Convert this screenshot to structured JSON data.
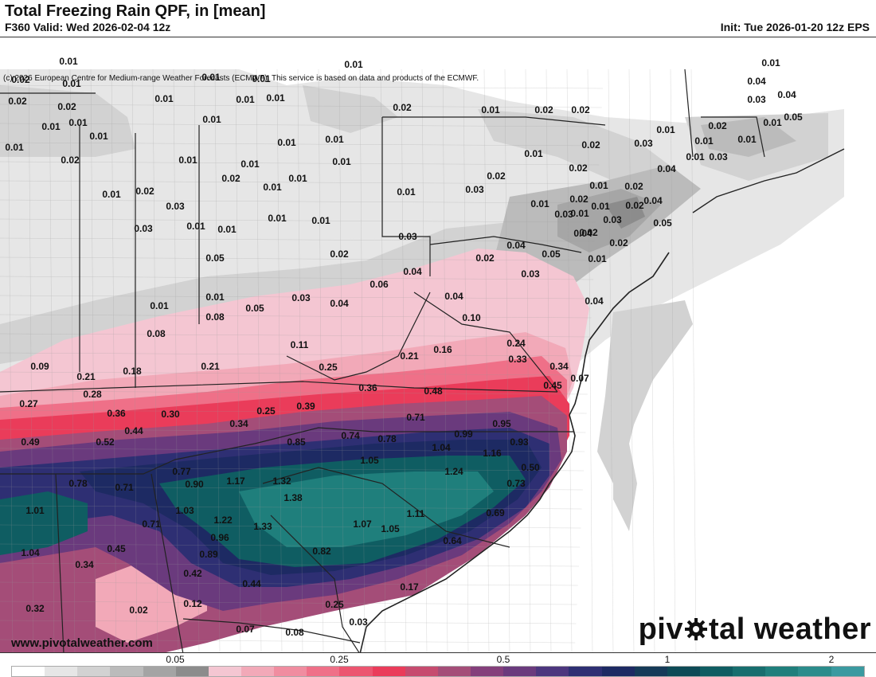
{
  "header": {
    "title": "Total Freezing Rain QPF, in [mean]",
    "valid": "F360 Valid: Wed 2026-02-04 12z",
    "init": "Init: Tue 2026-01-20 12z EPS",
    "copyright": "(c) 2026 European Centre for Medium-range Weather Forecasts (ECMWF). This service is based on data and products of the ECMWF."
  },
  "footer": {
    "website": "www.pivotalweather.com",
    "brand_pre": "piv",
    "brand_post": "tal weather"
  },
  "legend": {
    "ticks": [
      "0.05",
      "0.25",
      "0.5",
      "1",
      "2"
    ],
    "colors": [
      "#ffffff",
      "#e6e6e6",
      "#d2d2d2",
      "#bbbbbb",
      "#a4a4a4",
      "#8c8c8c",
      "#f4c6d2",
      "#f2a9b8",
      "#f08da0",
      "#ef7088",
      "#ec5570",
      "#ea3c5a",
      "#c64b6f",
      "#a44d78",
      "#843f7b",
      "#6a3a7d",
      "#4c367e",
      "#2e2f73",
      "#1d2a63",
      "#153a58",
      "#0d4a56",
      "#0f5d62",
      "#176e6e",
      "#1f7f7c",
      "#2b8c8b",
      "#3a9aa0"
    ]
  },
  "map": {
    "palette": {
      "g1": "#e6e6e6",
      "g2": "#d2d2d2",
      "g3": "#bbbbbb",
      "g4": "#a6a6a6",
      "g5": "#8c8c8c",
      "p1": "#f4c6d2",
      "p2": "#f2a9b8",
      "p3": "#ef7088",
      "r1": "#ea3c5a",
      "m1": "#a44d78",
      "m2": "#6a3a7d",
      "n1": "#2e2f73",
      "n2": "#1d2a63",
      "t1": "#0f5d62",
      "t2": "#1f7f7c"
    },
    "values": [
      "0.01",
      "0.02",
      "0.01",
      "0.02",
      "0.01",
      "0.01",
      "0.01",
      "0.01",
      "0.01",
      "0.01",
      "0.01",
      "0.02",
      "0.01",
      "0.01",
      "0.01",
      "0.02",
      "0.01",
      "0.02",
      "0.03",
      "0.03",
      "0.01",
      "0.01",
      "0.01",
      "0.02",
      "0.01",
      "0.01",
      "0.01",
      "0.01",
      "0.01",
      "0.01",
      "0.01",
      "0.01",
      "0.01",
      "0.02",
      "0.01",
      "0.02",
      "0.02",
      "0.01",
      "0.02",
      "0.02",
      "0.01",
      "0.03",
      "0.02",
      "0.01",
      "0.01",
      "0.03",
      "0.01",
      "0.04",
      "0.03",
      "0.01",
      "0.05",
      "0.04",
      "0.02",
      "0.03",
      "0.01",
      "0.01",
      "0.02",
      "0.01",
      "0.01",
      "0.02",
      "0.04",
      "0.01",
      "0.03",
      "0.03",
      "0.02",
      "0.04",
      "0.01",
      "0.05",
      "0.04",
      "0.01",
      "0.02",
      "0.02",
      "0.04",
      "0.02",
      "0.05",
      "0.04",
      "0.03",
      "0.06",
      "0.04",
      "0.03",
      "0.05",
      "0.01",
      "0.01",
      "0.02",
      "0.03",
      "0.08",
      "0.08",
      "0.05",
      "0.11",
      "0.10",
      "0.04",
      "0.04",
      "0.24",
      "0.16",
      "0.21",
      "0.25",
      "0.21",
      "0.18",
      "0.09",
      "0.33",
      "0.34",
      "0.07",
      "0.45",
      "0.48",
      "0.36",
      "0.28",
      "0.21",
      "0.27",
      "0.39",
      "0.25",
      "0.36",
      "0.30",
      "0.34",
      "0.71",
      "0.95",
      "0.99",
      "0.74",
      "0.78",
      "0.44",
      "0.52",
      "0.49",
      "0.85",
      "1.04",
      "0.93",
      "1.16",
      "1.05",
      "1.24",
      "0.50",
      "0.77",
      "0.90",
      "1.17",
      "1.32",
      "0.78",
      "0.71",
      "1.01",
      "1.03",
      "1.38",
      "0.73",
      "1.11",
      "1.07",
      "1.05",
      "1.22",
      "1.33",
      "0.69",
      "0.71",
      "0.96",
      "0.64",
      "0.82",
      "0.89",
      "0.45",
      "1.04",
      "0.34",
      "0.42",
      "0.44",
      "0.17",
      "0.12",
      "0.25",
      "0.02",
      "0.32",
      "0.07",
      "0.08",
      "0.03"
    ]
  }
}
